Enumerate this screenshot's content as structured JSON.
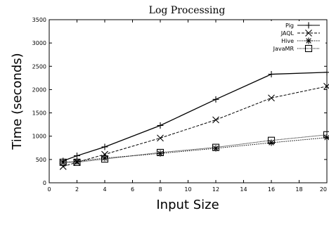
{
  "chart_data": {
    "type": "line",
    "title": "Log Processing",
    "xlabel": "Input Size",
    "ylabel": "Time (seconds)",
    "xlim": [
      0,
      20
    ],
    "ylim": [
      0,
      3500
    ],
    "xticks": [
      0,
      2,
      4,
      6,
      8,
      10,
      12,
      14,
      16,
      18,
      20
    ],
    "yticks": [
      0,
      500,
      1000,
      1500,
      2000,
      2500,
      3000,
      3500
    ],
    "grid": false,
    "legend_position": "top-right",
    "x": [
      1,
      2,
      4,
      8,
      12,
      16,
      20
    ],
    "series": [
      {
        "name": "Pig",
        "marker": "plus",
        "dash": "solid",
        "values": [
          470,
          580,
          770,
          1230,
          1790,
          2330,
          2370
        ]
      },
      {
        "name": "JAQL",
        "marker": "x",
        "dash": "dashed",
        "values": [
          350,
          440,
          610,
          960,
          1350,
          1820,
          2070
        ]
      },
      {
        "name": "Hive",
        "marker": "asterisk",
        "dash": "dotted",
        "values": [
          440,
          460,
          530,
          630,
          740,
          860,
          970
        ]
      },
      {
        "name": "JavaMR",
        "marker": "square",
        "dash": "finedot",
        "values": [
          440,
          440,
          510,
          650,
          760,
          910,
          1030
        ]
      }
    ]
  }
}
